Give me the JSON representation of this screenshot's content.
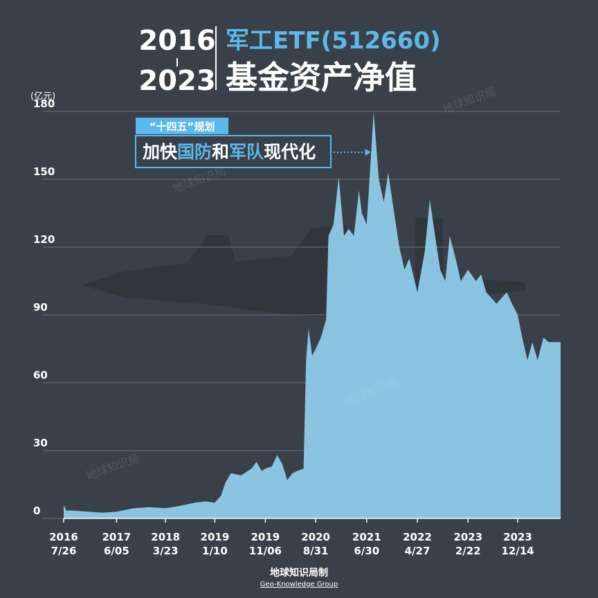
{
  "header": {
    "year_start": "2016",
    "year_end": "2023",
    "title_line1": "军工ETF(512660)",
    "title_line2": "基金资产净值"
  },
  "footer": {
    "credit": "地球知识局制",
    "credit_en": "Geo-Knowledge Group"
  },
  "watermarks": [
    "地球知识局",
    "地球知识局",
    "地球知识局",
    "地球知识局"
  ],
  "chart_data": {
    "type": "area",
    "y_axis_label": "(亿元)",
    "annotation": {
      "tag": "“十四五”规划",
      "segments": [
        {
          "text": "加快",
          "color": "#ffffff"
        },
        {
          "text": "国防",
          "color": "#5cb8e8"
        },
        {
          "text": "和",
          "color": "#ffffff"
        },
        {
          "text": "军队",
          "color": "#5cb8e8"
        },
        {
          "text": "现代化",
          "color": "#ffffff"
        }
      ],
      "target": "2021-08-10"
    },
    "color": "#8ecbe9",
    "grid": true,
    "ylim": [
      0,
      180
    ],
    "yticks": [
      0,
      30,
      60,
      90,
      120,
      150,
      180
    ],
    "xlim": [
      "2016-07-26",
      "2024-08-25"
    ],
    "xticks": [
      {
        "value": "2016-07-26",
        "label": [
          "2016",
          "7/26"
        ]
      },
      {
        "value": "2017-06-05",
        "label": [
          "2017",
          "6/05"
        ]
      },
      {
        "value": "2018-03-23",
        "label": [
          "2018",
          "3/23"
        ]
      },
      {
        "value": "2019-01-10",
        "label": [
          "2019",
          "1/10"
        ]
      },
      {
        "value": "2019-11-06",
        "label": [
          "2019",
          "11/06"
        ]
      },
      {
        "value": "2020-08-31",
        "label": [
          "2020",
          "8/31"
        ]
      },
      {
        "value": "2021-06-30",
        "label": [
          "2021",
          "6/30"
        ]
      },
      {
        "value": "2022-04-27",
        "label": [
          "2022",
          "4/27"
        ]
      },
      {
        "value": "2023-02-22",
        "label": [
          "2023",
          "2/22"
        ]
      },
      {
        "value": "2023-12-14",
        "label": [
          "2023",
          "12/14"
        ]
      }
    ],
    "x": [
      "2016-07-26",
      "2016-08-10",
      "2016-09-15",
      "2016-12-15",
      "2017-03-15",
      "2017-06-05",
      "2017-09-15",
      "2017-12-15",
      "2018-03-23",
      "2018-06-15",
      "2018-09-15",
      "2018-11-15",
      "2019-01-10",
      "2019-02-15",
      "2019-03-15",
      "2019-04-15",
      "2019-06-15",
      "2019-08-15",
      "2019-09-15",
      "2019-10-15",
      "2019-11-06",
      "2019-12-15",
      "2020-01-15",
      "2020-02-15",
      "2020-03-15",
      "2020-04-15",
      "2020-05-15",
      "2020-06-20",
      "2020-07-05",
      "2020-07-20",
      "2020-08-10",
      "2020-08-31",
      "2020-10-01",
      "2020-11-01",
      "2020-11-15",
      "2020-12-15",
      "2021-01-15",
      "2021-02-15",
      "2021-03-15",
      "2021-04-15",
      "2021-05-15",
      "2021-06-01",
      "2021-06-30",
      "2021-07-25",
      "2021-08-10",
      "2021-09-10",
      "2021-10-10",
      "2021-11-05",
      "2021-12-10",
      "2022-01-10",
      "2022-02-10",
      "2022-03-10",
      "2022-04-27",
      "2022-06-10",
      "2022-07-10",
      "2022-08-10",
      "2022-09-10",
      "2022-10-10",
      "2022-11-05",
      "2022-12-10",
      "2023-01-10",
      "2023-02-22",
      "2023-04-10",
      "2023-05-10",
      "2023-06-10",
      "2023-08-10",
      "2023-10-10",
      "2023-11-10",
      "2023-12-14",
      "2024-01-10",
      "2024-02-10",
      "2024-03-10",
      "2024-04-10",
      "2024-05-15",
      "2024-06-15",
      "2024-08-25"
    ],
    "values": [
      6,
      3.5,
      3.5,
      3,
      2.5,
      3,
      4.5,
      5,
      4.5,
      5.5,
      7,
      7.5,
      7,
      10,
      16,
      20,
      19,
      22,
      25,
      21,
      22,
      23,
      28,
      24,
      17,
      20,
      21,
      22,
      70,
      84,
      72,
      75,
      80,
      88,
      125,
      130,
      151,
      125,
      128,
      125,
      145,
      135,
      130,
      160,
      180,
      150,
      140,
      153,
      135,
      120,
      110,
      115,
      100,
      118,
      141,
      125,
      110,
      105,
      125,
      115,
      105,
      110,
      105,
      108,
      100,
      95,
      100,
      95,
      90,
      80,
      70,
      78,
      70,
      80,
      78,
      78
    ]
  }
}
